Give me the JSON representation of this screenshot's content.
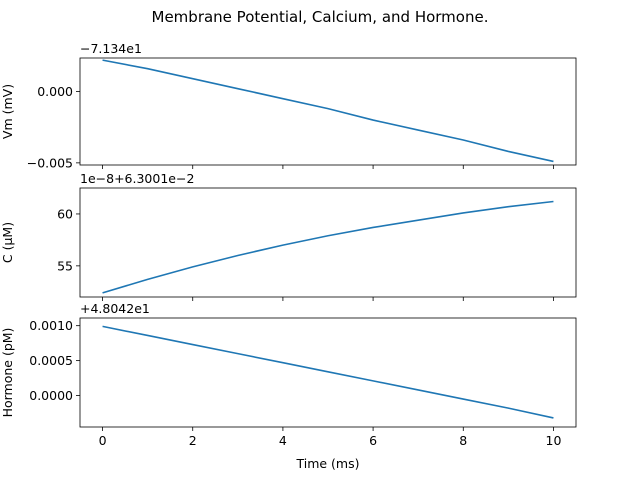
{
  "figure": {
    "title": "Membrane Potential, Calcium, and Hormone.",
    "line_color": "#1f77b4"
  },
  "chart_data": [
    {
      "type": "line",
      "ylabel": "Vm (mV)",
      "xlabel": "",
      "offset_label": "−7.134e1",
      "xlim": [
        -0.5,
        10.5
      ],
      "ylim": [
        -0.00515,
        0.00235
      ],
      "xticks": [
        0,
        2,
        4,
        6,
        8,
        10
      ],
      "xtick_labels_shown": false,
      "yticks": [
        0.0,
        -0.005
      ],
      "ytick_labels": [
        "0.000",
        "−0.005"
      ],
      "x": [
        0,
        1,
        2,
        3,
        4,
        5,
        6,
        7,
        8,
        9,
        10
      ],
      "y": [
        0.0022,
        0.0016,
        0.0009,
        0.0002,
        -0.0005,
        -0.0012,
        -0.002,
        -0.0027,
        -0.0034,
        -0.0042,
        -0.0049
      ],
      "grid": false
    },
    {
      "type": "line",
      "ylabel": "C (μM)",
      "xlabel": "",
      "offset_label": "1e−8+6.3001e−2",
      "xlim": [
        -0.5,
        10.5
      ],
      "ylim": [
        52.0,
        62.5
      ],
      "xticks": [
        0,
        2,
        4,
        6,
        8,
        10
      ],
      "xtick_labels_shown": false,
      "yticks": [
        55,
        60
      ],
      "ytick_labels": [
        "55",
        "60"
      ],
      "x": [
        0,
        1,
        2,
        3,
        4,
        5,
        6,
        7,
        8,
        9,
        10
      ],
      "y": [
        52.4,
        53.7,
        54.9,
        56.0,
        57.0,
        57.9,
        58.7,
        59.4,
        60.1,
        60.7,
        61.2
      ],
      "grid": false
    },
    {
      "type": "line",
      "ylabel": "Hormone (pM)",
      "xlabel": "Time (ms)",
      "offset_label": "+4.8042e1",
      "xlim": [
        -0.5,
        10.5
      ],
      "ylim": [
        -0.00045,
        0.00111
      ],
      "xticks": [
        0,
        2,
        4,
        6,
        8,
        10
      ],
      "xtick_labels_shown": true,
      "xtick_labels": [
        "0",
        "2",
        "4",
        "6",
        "8",
        "10"
      ],
      "yticks": [
        0.001,
        0.0005,
        0.0
      ],
      "ytick_labels": [
        "0.0010",
        "0.0005",
        "0.0000"
      ],
      "x": [
        0,
        1,
        2,
        3,
        4,
        5,
        6,
        7,
        8,
        9,
        10
      ],
      "y": [
        0.00099,
        0.00086,
        0.00073,
        0.0006,
        0.00047,
        0.00034,
        0.00021,
        8e-05,
        -5e-05,
        -0.00018,
        -0.00032
      ],
      "grid": false
    }
  ]
}
